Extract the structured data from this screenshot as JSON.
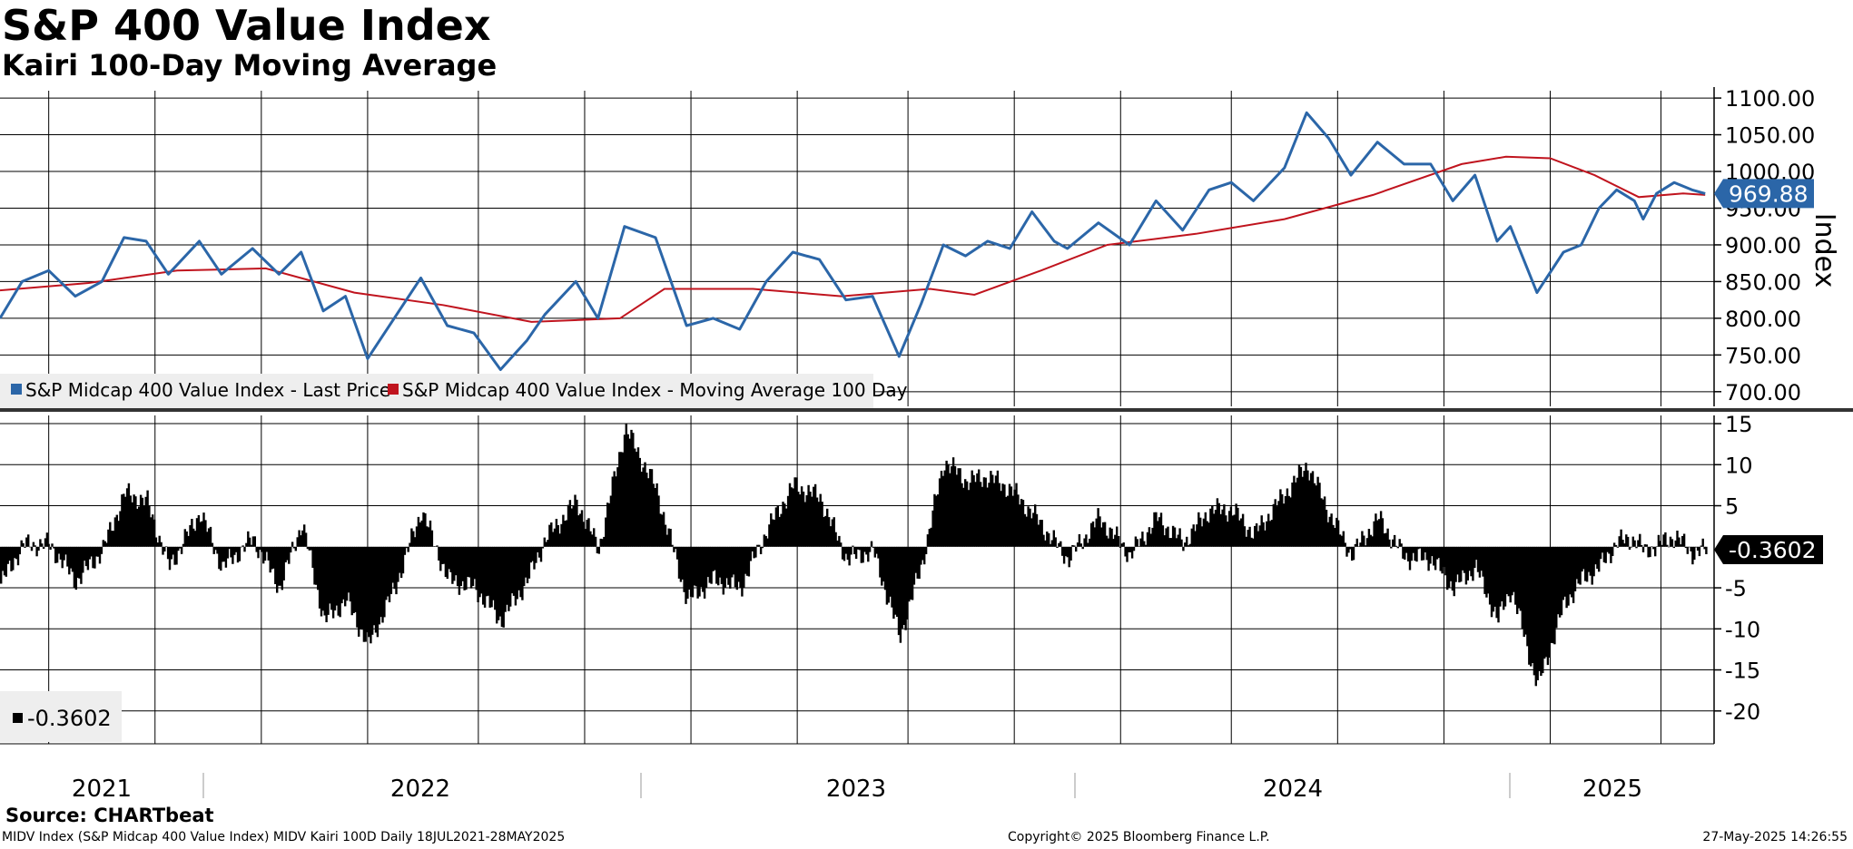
{
  "header": {
    "title": "S&P 400 Value Index",
    "subtitle": "Kairi 100-Day Moving Average"
  },
  "colors": {
    "price": "#2b66a8",
    "ma": "#c0141e",
    "kairi": "#000000",
    "grid": "#000000",
    "last_badge_price": "#2b66a8",
    "last_badge_kairi": "#000000"
  },
  "chart_data": [
    {
      "type": "line",
      "panel": "top",
      "ylabel": "Index",
      "ylim": [
        680,
        1110
      ],
      "y_ticks": [
        "1100.00",
        "1050.00",
        "1000.00",
        "950.00",
        "900.00",
        "850.00",
        "800.00",
        "750.00",
        "700.00"
      ],
      "y_tick_values": [
        1100,
        1050,
        1000,
        950,
        900,
        850,
        800,
        750,
        700
      ],
      "x_range": [
        2021.55,
        2025.42
      ],
      "series": [
        {
          "name": "S&P Midcap 400 Value Index - Last Price",
          "x": [
            2021.55,
            2021.6,
            2021.66,
            2021.72,
            2021.78,
            2021.83,
            2021.88,
            2021.93,
            2022.0,
            2022.05,
            2022.12,
            2022.18,
            2022.23,
            2022.28,
            2022.33,
            2022.38,
            2022.44,
            2022.5,
            2022.56,
            2022.62,
            2022.68,
            2022.74,
            2022.78,
            2022.85,
            2022.9,
            2022.96,
            2023.03,
            2023.1,
            2023.16,
            2023.22,
            2023.28,
            2023.34,
            2023.4,
            2023.46,
            2023.52,
            2023.58,
            2023.63,
            2023.68,
            2023.73,
            2023.78,
            2023.83,
            2023.88,
            2023.93,
            2023.96,
            2024.03,
            2024.1,
            2024.16,
            2024.22,
            2024.28,
            2024.33,
            2024.38,
            2024.45,
            2024.5,
            2024.55,
            2024.6,
            2024.66,
            2024.72,
            2024.78,
            2024.83,
            2024.88,
            2024.93,
            2024.96,
            2025.02,
            2025.08,
            2025.12,
            2025.16,
            2025.2,
            2025.24,
            2025.26,
            2025.29,
            2025.33,
            2025.37,
            2025.4
          ],
          "values": [
            800,
            850,
            865,
            830,
            850,
            910,
            905,
            860,
            905,
            860,
            895,
            860,
            890,
            810,
            830,
            745,
            800,
            855,
            790,
            780,
            730,
            770,
            805,
            850,
            800,
            925,
            910,
            790,
            800,
            785,
            850,
            890,
            880,
            825,
            830,
            748,
            820,
            900,
            885,
            905,
            895,
            945,
            905,
            895,
            930,
            900,
            960,
            920,
            975,
            985,
            960,
            1005,
            1080,
            1045,
            995,
            1040,
            1010,
            1010,
            960,
            995,
            905,
            925,
            835,
            890,
            900,
            950,
            975,
            960,
            935,
            970,
            985,
            975,
            969.88
          ]
        },
        {
          "name": "S&P Midcap 400 Value Index - Moving Average 100 Day",
          "x": [
            2021.55,
            2021.75,
            2021.95,
            2022.15,
            2022.35,
            2022.55,
            2022.75,
            2022.95,
            2023.05,
            2023.25,
            2023.45,
            2023.65,
            2023.75,
            2023.9,
            2024.05,
            2024.25,
            2024.45,
            2024.65,
            2024.85,
            2024.95,
            2025.05,
            2025.15,
            2025.25,
            2025.35,
            2025.4
          ],
          "values": [
            838,
            848,
            865,
            868,
            835,
            818,
            795,
            800,
            840,
            840,
            830,
            840,
            832,
            865,
            900,
            915,
            935,
            968,
            1010,
            1020,
            1018,
            995,
            965,
            970,
            968
          ]
        }
      ],
      "last_value_label": "969.88",
      "legend": "bottom-left"
    },
    {
      "type": "bar",
      "panel": "bottom",
      "ylim": [
        -24,
        16
      ],
      "y_ticks": [
        "15",
        "10",
        "5",
        "-0.3602",
        "-5",
        "-10",
        "-15",
        "-20"
      ],
      "y_tick_values": [
        15,
        10,
        5,
        -0.3602,
        -5,
        -10,
        -15,
        -20
      ],
      "x_range": [
        2021.55,
        2025.42
      ],
      "series": [
        {
          "name": "MIDV Kairi 100D",
          "x": [
            2021.55,
            2021.6,
            2021.66,
            2021.72,
            2021.78,
            2021.83,
            2021.88,
            2021.93,
            2022.0,
            2022.05,
            2022.12,
            2022.18,
            2022.23,
            2022.28,
            2022.33,
            2022.38,
            2022.44,
            2022.5,
            2022.56,
            2022.62,
            2022.68,
            2022.74,
            2022.78,
            2022.85,
            2022.9,
            2022.96,
            2023.03,
            2023.1,
            2023.16,
            2023.22,
            2023.28,
            2023.34,
            2023.4,
            2023.46,
            2023.52,
            2023.58,
            2023.63,
            2023.68,
            2023.73,
            2023.78,
            2023.83,
            2023.88,
            2023.93,
            2023.96,
            2024.03,
            2024.1,
            2024.16,
            2024.22,
            2024.28,
            2024.33,
            2024.38,
            2024.45,
            2024.5,
            2024.55,
            2024.6,
            2024.66,
            2024.72,
            2024.78,
            2024.83,
            2024.88,
            2024.93,
            2024.96,
            2025.02,
            2025.08,
            2025.12,
            2025.16,
            2025.2,
            2025.24,
            2025.26,
            2025.29,
            2025.33,
            2025.37,
            2025.4
          ],
          "values": [
            -4.5,
            0.2,
            0.3,
            -4.2,
            -0.4,
            6.5,
            5.5,
            -2.5,
            4.2,
            -2.5,
            1,
            -5,
            3,
            -9,
            -6.5,
            -12,
            -5,
            4.5,
            -4,
            -5,
            -9,
            -4,
            1,
            5.5,
            -0.3,
            14.5,
            7,
            -6.5,
            -4,
            -5,
            2,
            7.5,
            6,
            -1.5,
            -0.5,
            -11,
            -2,
            10.5,
            8,
            8.5,
            7,
            4,
            0.5,
            -1.5,
            3.5,
            -1,
            3.5,
            0.5,
            4.5,
            4.5,
            1.5,
            6.5,
            10,
            4,
            -1,
            3.5,
            -1.3,
            -1.5,
            -5,
            -2.5,
            -9,
            -5,
            -17,
            -7,
            -4,
            -2.5,
            0.6,
            1,
            -0.6,
            0.2,
            1.3,
            -0.8,
            -0.36
          ]
        }
      ],
      "last_value_label": "-0.3602",
      "legend_value": "-0.3602"
    }
  ],
  "x_axis": {
    "years": [
      "2021",
      "2022",
      "2023",
      "2024",
      "2025"
    ]
  },
  "legend": {
    "items": [
      "S&P Midcap 400 Value Index - Last Price",
      "S&P Midcap 400 Value Index - Moving Average 100 Day"
    ],
    "bottom_value": "-0.3602"
  },
  "footer": {
    "source": "Source: CHARTbeat",
    "left": "MIDV Index (S&P Midcap 400 Value Index) MIDV Kairi 100D  Daily 18JUL2021-28MAY2025",
    "center": "Copyright© 2025 Bloomberg Finance L.P.",
    "right": "27-May-2025 14:26:55"
  }
}
